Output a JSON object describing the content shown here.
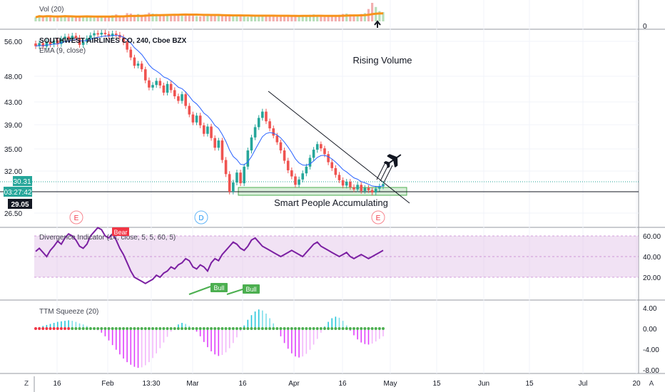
{
  "chart_data": {
    "type": "candlestick",
    "x_ticks": [
      "16",
      "Feb",
      "13:30",
      "Mar",
      "16",
      "Apr",
      "16",
      "May",
      "15",
      "Jun",
      "15",
      "Jul",
      "20"
    ],
    "main": {
      "title": "SOUTHWEST AIRLINES CO, 240, Cboe BZX",
      "indicator_label": "EMA (9, close)",
      "y_ticks": [
        "56.00",
        "48.00",
        "43.00",
        "39.00",
        "35.00",
        "32.00",
        "26.50"
      ],
      "price_badges": [
        {
          "value": "30.31",
          "color": "#26a69a"
        },
        {
          "value": "03:27:42",
          "color": "#26a69a"
        },
        {
          "value": "29.05",
          "color": "#131722"
        }
      ],
      "candle_closes": [
        54.9,
        55.6,
        54.8,
        55.9,
        55.3,
        56.2,
        55.4,
        56.6,
        57.1,
        56.5,
        57.3,
        56.8,
        55.2,
        55.9,
        56.7,
        57.4,
        57.9,
        57.6,
        58.0,
        57.7,
        57.2,
        57.8,
        57.5,
        56.9,
        55.8,
        54.1,
        52.3,
        50.4,
        50.9,
        49.6,
        47.2,
        45.8,
        46.3,
        47.1,
        46.2,
        44.8,
        46.5,
        45.3,
        44.1,
        43.2,
        44.5,
        42.3,
        40.8,
        39.4,
        40.6,
        38.9,
        37.5,
        38.7,
        36.8,
        35.2,
        36.4,
        33.5,
        31.6,
        29.3,
        30.5,
        31.8,
        30.4,
        32.6,
        34.8,
        36.9,
        38.6,
        40.2,
        41.3,
        39.6,
        38.4,
        37.2,
        36.1,
        34.8,
        33.4,
        32.1,
        31.3,
        30.2,
        30.9,
        31.7,
        32.6,
        33.8,
        34.9,
        35.8,
        35.1,
        34.3,
        33.2,
        32.4,
        31.5,
        30.8,
        30.1,
        30.6,
        29.9,
        29.6,
        30.2,
        29.4,
        29.8,
        29.5,
        29.2,
        29.7,
        30.0,
        30.31
      ],
      "annotations": [
        {
          "text": "Rising Volume"
        },
        {
          "text": "Smart People Accumulating"
        }
      ],
      "event_markers": [
        "E",
        "D",
        "E"
      ]
    },
    "volume": {
      "title": "Vol (20)",
      "y_ticks": [
        "0"
      ],
      "values": [
        20,
        30,
        22,
        28,
        25,
        18,
        24,
        26,
        30,
        22,
        20,
        19,
        24,
        26,
        28,
        22,
        18,
        20,
        24,
        26,
        22,
        30,
        34,
        28,
        26,
        40,
        38,
        32,
        36,
        30,
        34,
        42,
        38,
        36,
        32,
        30,
        28,
        26,
        30,
        34,
        36,
        32,
        30,
        28,
        26,
        24,
        26,
        30,
        28,
        32,
        34,
        30,
        26,
        24,
        28,
        30,
        26,
        24,
        22,
        26,
        28,
        30,
        32,
        28,
        26,
        24,
        22,
        26,
        28,
        30,
        26,
        24,
        22,
        28,
        30,
        32,
        34,
        26,
        24,
        22,
        26,
        28,
        30,
        32,
        36,
        38,
        34,
        30,
        32,
        36,
        40,
        60,
        90,
        70,
        50,
        45
      ]
    },
    "divergence": {
      "title": "Divergence Indicator (14, close, 5, 5, 60, 5)",
      "y_ticks": [
        "60.00",
        "40.00",
        "20.00"
      ],
      "labels": [
        "Bear",
        "Bull",
        "Bull"
      ],
      "values": [
        45,
        48,
        44,
        40,
        46,
        50,
        55,
        52,
        58,
        62,
        60,
        56,
        50,
        48,
        52,
        60,
        64,
        68,
        66,
        60,
        58,
        62,
        56,
        48,
        42,
        34,
        26,
        20,
        18,
        16,
        14,
        16,
        18,
        22,
        20,
        24,
        26,
        30,
        28,
        32,
        34,
        38,
        36,
        30,
        28,
        32,
        30,
        26,
        34,
        38,
        36,
        42,
        46,
        50,
        54,
        52,
        48,
        46,
        50,
        56,
        58,
        54,
        50,
        48,
        46,
        44,
        42,
        40,
        42,
        44,
        46,
        44,
        42,
        40,
        44,
        48,
        52,
        54,
        50,
        48,
        46,
        44,
        42,
        40,
        42,
        44,
        40,
        38,
        40,
        42,
        40,
        38,
        40,
        42,
        44,
        46
      ]
    },
    "squeeze": {
      "title": "TTM Squeeze (20)",
      "y_ticks": [
        "4.00",
        "0.00",
        "-4.00",
        "-8.00"
      ],
      "values": [
        0.2,
        0.3,
        0.5,
        0.7,
        0.9,
        1.1,
        1.3,
        1.4,
        1.5,
        1.6,
        1.5,
        1.3,
        1.0,
        0.8,
        0.5,
        0.3,
        0.1,
        -0.3,
        -0.8,
        -1.5,
        -2.3,
        -3.2,
        -4.1,
        -5.0,
        -5.8,
        -6.5,
        -7.0,
        -7.4,
        -7.6,
        -7.5,
        -7.1,
        -6.5,
        -5.7,
        -4.8,
        -3.8,
        -2.7,
        -1.6,
        -0.6,
        0.2,
        0.8,
        1.1,
        0.9,
        0.5,
        0.1,
        -0.6,
        -1.5,
        -2.6,
        -3.6,
        -4.4,
        -5.0,
        -5.3,
        -5.1,
        -4.6,
        -3.8,
        -2.8,
        -1.7,
        -0.5,
        0.6,
        1.7,
        2.6,
        3.3,
        3.7,
        3.5,
        2.9,
        2.0,
        1.0,
        -0.2,
        -1.5,
        -2.8,
        -3.9,
        -4.8,
        -5.4,
        -5.6,
        -5.4,
        -4.9,
        -4.1,
        -3.1,
        -2.0,
        -0.8,
        0.4,
        1.3,
        2.0,
        2.3,
        2.1,
        1.5,
        0.6,
        -0.4,
        -1.3,
        -2.1,
        -2.7,
        -3.0,
        -3.1,
        -2.9,
        -2.5,
        -2.0,
        -1.5
      ]
    }
  }
}
